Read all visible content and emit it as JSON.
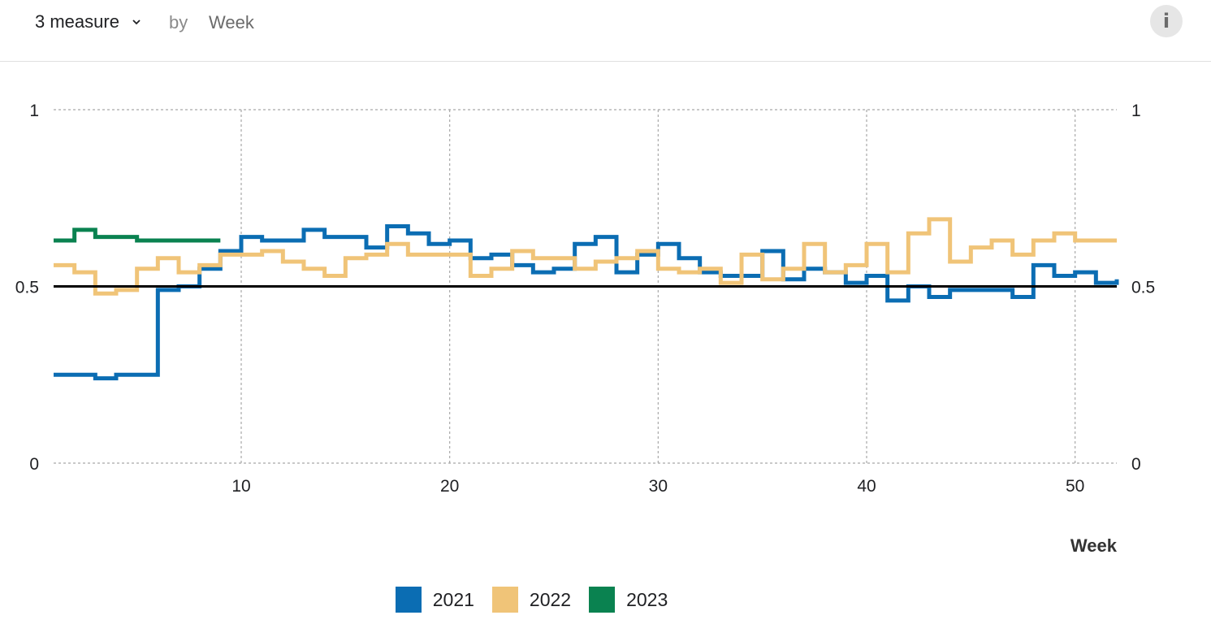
{
  "toolbar": {
    "measure_label": "3 measure",
    "by_label": "by",
    "dimension_label": "Week",
    "info_label": "i"
  },
  "chart_data": {
    "type": "line",
    "step": true,
    "xlabel": "Week",
    "ylabel": "",
    "xlim": [
      1,
      52
    ],
    "ylim": [
      0,
      1
    ],
    "x_ticks": [
      10,
      20,
      30,
      40,
      50
    ],
    "y_ticks": [
      0,
      0.5,
      1
    ],
    "y_tick_labels": [
      "0",
      "0.5",
      "1"
    ],
    "reference_line": 0.5,
    "grid": true,
    "legend_position": "bottom",
    "series": [
      {
        "name": "2021",
        "color": "#0b6db3",
        "x": [
          1,
          2,
          3,
          4,
          5,
          6,
          7,
          8,
          9,
          10,
          11,
          12,
          13,
          14,
          15,
          16,
          17,
          18,
          19,
          20,
          21,
          22,
          23,
          24,
          25,
          26,
          27,
          28,
          29,
          30,
          31,
          32,
          33,
          34,
          35,
          36,
          37,
          38,
          39,
          40,
          41,
          42,
          43,
          44,
          45,
          46,
          47,
          48,
          49,
          50,
          51,
          52
        ],
        "values": [
          0.25,
          0.25,
          0.24,
          0.25,
          0.25,
          0.49,
          0.5,
          0.55,
          0.6,
          0.64,
          0.63,
          0.63,
          0.66,
          0.64,
          0.64,
          0.61,
          0.67,
          0.65,
          0.62,
          0.63,
          0.58,
          0.59,
          0.56,
          0.54,
          0.55,
          0.62,
          0.64,
          0.54,
          0.59,
          0.62,
          0.58,
          0.54,
          0.53,
          0.53,
          0.6,
          0.52,
          0.55,
          0.54,
          0.51,
          0.53,
          0.46,
          0.5,
          0.47,
          0.49,
          0.49,
          0.49,
          0.47,
          0.56,
          0.53,
          0.54,
          0.51,
          0.52
        ]
      },
      {
        "name": "2022",
        "color": "#f0c478",
        "x": [
          1,
          2,
          3,
          4,
          5,
          6,
          7,
          8,
          9,
          10,
          11,
          12,
          13,
          14,
          15,
          16,
          17,
          18,
          19,
          20,
          21,
          22,
          23,
          24,
          25,
          26,
          27,
          28,
          29,
          30,
          31,
          32,
          33,
          34,
          35,
          36,
          37,
          38,
          39,
          40,
          41,
          42,
          43,
          44,
          45,
          46,
          47,
          48,
          49,
          50,
          51,
          52
        ],
        "values": [
          0.56,
          0.54,
          0.48,
          0.49,
          0.55,
          0.58,
          0.54,
          0.56,
          0.59,
          0.59,
          0.6,
          0.57,
          0.55,
          0.53,
          0.58,
          0.59,
          0.62,
          0.59,
          0.59,
          0.59,
          0.53,
          0.55,
          0.6,
          0.58,
          0.58,
          0.55,
          0.57,
          0.58,
          0.6,
          0.55,
          0.54,
          0.55,
          0.51,
          0.59,
          0.52,
          0.55,
          0.62,
          0.54,
          0.56,
          0.62,
          0.54,
          0.65,
          0.69,
          0.57,
          0.61,
          0.63,
          0.59,
          0.63,
          0.65,
          0.63,
          0.63,
          0.63
        ]
      },
      {
        "name": "2023",
        "color": "#0a8250",
        "x": [
          1,
          2,
          3,
          4,
          5,
          6,
          7,
          8
        ],
        "values": [
          0.63,
          0.66,
          0.64,
          0.64,
          0.63,
          0.63,
          0.63,
          0.63
        ]
      }
    ]
  }
}
